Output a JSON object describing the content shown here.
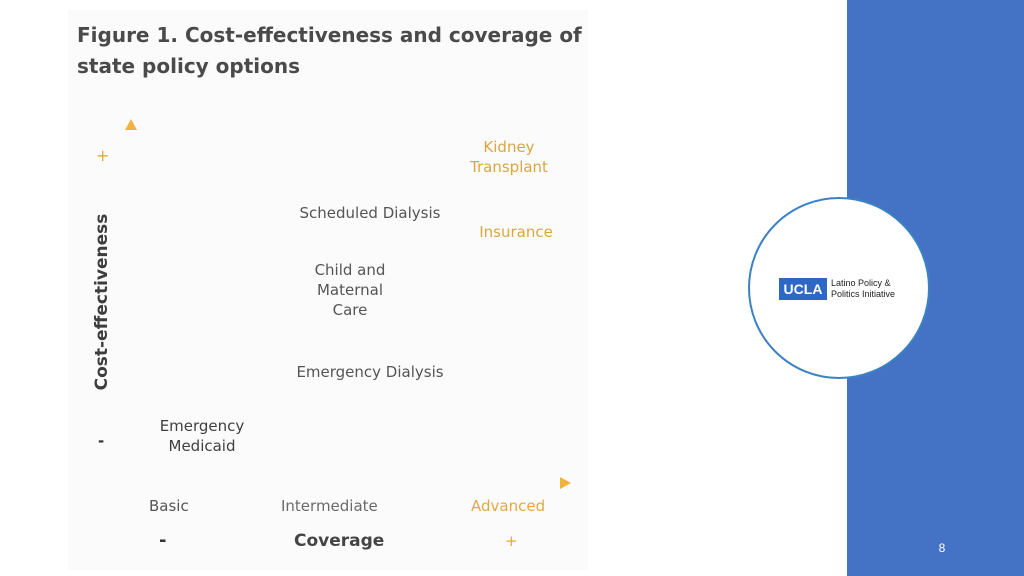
{
  "figure": {
    "title": "Figure 1. Cost-effectiveness and coverage of\nstate policy options",
    "y_axis": {
      "label": "Cost-effectiveness",
      "high_mark": "+",
      "low_mark": "-"
    },
    "x_axis": {
      "label": "Coverage",
      "ticks": [
        "Basic",
        "Intermediate",
        "Advanced"
      ],
      "low_mark": "-",
      "high_mark": "+"
    },
    "items": {
      "kidney_transplant": "Kidney\nTransplant",
      "scheduled_dialysis": "Scheduled Dialysis",
      "insurance": "Insurance",
      "child_maternal_care": "Child and\nMaternal\nCare",
      "emergency_dialysis": "Emergency Dialysis",
      "emergency_medicaid": "Emergency\nMedicaid"
    }
  },
  "logo": {
    "ucla": "UCLA",
    "org_name": "Latino Policy &\nPolitics Initiative"
  },
  "page_number": "8",
  "colors": {
    "side_panel": "#4472c4",
    "axis_gradient_start": "#444444",
    "axis_gradient_end": "#f2b33d",
    "gold_text": "#d9a640",
    "ucla_blue": "#2d68c4"
  }
}
